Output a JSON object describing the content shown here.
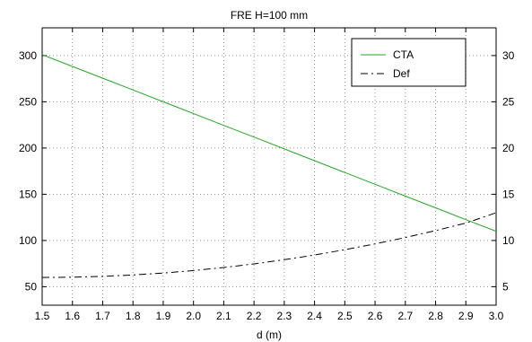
{
  "chart_data": {
    "type": "line",
    "title": "FRE H=100 mm",
    "xlabel": "d (m)",
    "ylabel": "",
    "ylabel_right": "",
    "xlim": [
      1.5,
      3.0
    ],
    "ylim": [
      30,
      330
    ],
    "ylim_right": [
      3,
      33
    ],
    "x_ticks": [
      1.5,
      1.6,
      1.7,
      1.8,
      1.9,
      2.0,
      2.1,
      2.2,
      2.3,
      2.4,
      2.5,
      2.6,
      2.7,
      2.8,
      2.9,
      3.0
    ],
    "x_tick_labels": [
      "1.5",
      "1.6",
      "1.7",
      "1.8",
      "1.9",
      "2.0",
      "2.1",
      "2.2",
      "2.3",
      "2.4",
      "2.5",
      "2.6",
      "2.7",
      "2.8",
      "2.9",
      "3.0"
    ],
    "y_ticks": [
      50,
      100,
      150,
      200,
      250,
      300
    ],
    "y_tick_labels": [
      "50",
      "100",
      "150",
      "200",
      "250",
      "300"
    ],
    "y_right_ticks": [
      5,
      10,
      15,
      20,
      25,
      30
    ],
    "y_right_tick_labels": [
      "5",
      "10",
      "15",
      "20",
      "25",
      "30"
    ],
    "grid": true,
    "legend_position": "top-right",
    "series": [
      {
        "name": "CTA",
        "axis": "left",
        "color": "#22aa22",
        "dash": "solid",
        "x": [
          1.5,
          1.6,
          1.7,
          1.8,
          1.9,
          2.0,
          2.1,
          2.2,
          2.3,
          2.4,
          2.5,
          2.6,
          2.7,
          2.8,
          2.9,
          3.0
        ],
        "y": [
          301,
          288.3,
          275.5,
          262.8,
          250,
          237.3,
          224.5,
          211.8,
          199,
          186.3,
          173.5,
          160.8,
          148,
          135.3,
          122.5,
          110
        ]
      },
      {
        "name": "Def",
        "axis": "right",
        "color": "#000000",
        "dash": "dashdot",
        "x": [
          1.5,
          1.6,
          1.7,
          1.8,
          1.9,
          2.0,
          2.1,
          2.2,
          2.3,
          2.4,
          2.5,
          2.6,
          2.7,
          2.8,
          2.9,
          3.0
        ],
        "y": [
          6.0,
          6.03,
          6.12,
          6.27,
          6.48,
          6.75,
          7.08,
          7.47,
          7.92,
          8.43,
          9.0,
          9.63,
          10.32,
          11.07,
          11.88,
          13.0
        ]
      }
    ]
  }
}
